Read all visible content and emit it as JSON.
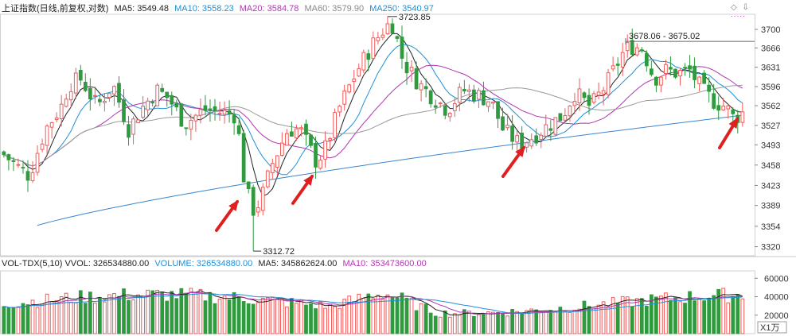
{
  "header": {
    "title": "上证指数(日线,前复权,对数)",
    "ma5": "MA5: 3549.48",
    "ma10": "MA10: 3558.23",
    "ma20": "MA20: 3584.78",
    "ma60": "MA60: 3579.90",
    "ma250": "MA250: 3540.97"
  },
  "vol_header": {
    "title": "VOL-TDX(5,10) VVOL: 326534880.00",
    "volume": "VOLUME: 326534880.00",
    "ma5": "MA5: 345862624.00",
    "ma10": "MA10: 353473600.00"
  },
  "toolbar": {
    "diamond": "◇",
    "arrow": "⇩",
    "dots": "....."
  },
  "colors": {
    "up": "#f05b5b",
    "down": "#2f9a3e",
    "ma5": "#222222",
    "ma10": "#1e90d6",
    "ma20": "#b037b0",
    "ma60": "#999999",
    "ma250": "#3a86d0",
    "arrow": "#e02020"
  },
  "chart_data": {
    "type": "candlestick",
    "title": "上证指数(日线,前复权,对数)",
    "price_axis": {
      "ticks": [
        3320,
        3354,
        3389,
        3423,
        3458,
        3493,
        3527,
        3562,
        3596,
        3631,
        3666,
        3700
      ],
      "ylim": [
        3305,
        3728
      ],
      "log": true
    },
    "volume_axis": {
      "ticks": [
        20000,
        40000,
        60000
      ],
      "ylim": [
        0,
        68000
      ],
      "unit": "X1万"
    },
    "annotations": {
      "low": "3312.72",
      "high": "3723.85",
      "range": "3678.06 - 3675.02"
    },
    "ma_values_latest": {
      "MA5": 3549.48,
      "MA10": 3558.23,
      "MA20": 3584.78,
      "MA60": 3579.9,
      "MA250": 3540.97
    },
    "volume_latest": {
      "VOLUME": 326534880.0,
      "MA5": 345862624.0,
      "MA10": 353473600.0
    }
  }
}
